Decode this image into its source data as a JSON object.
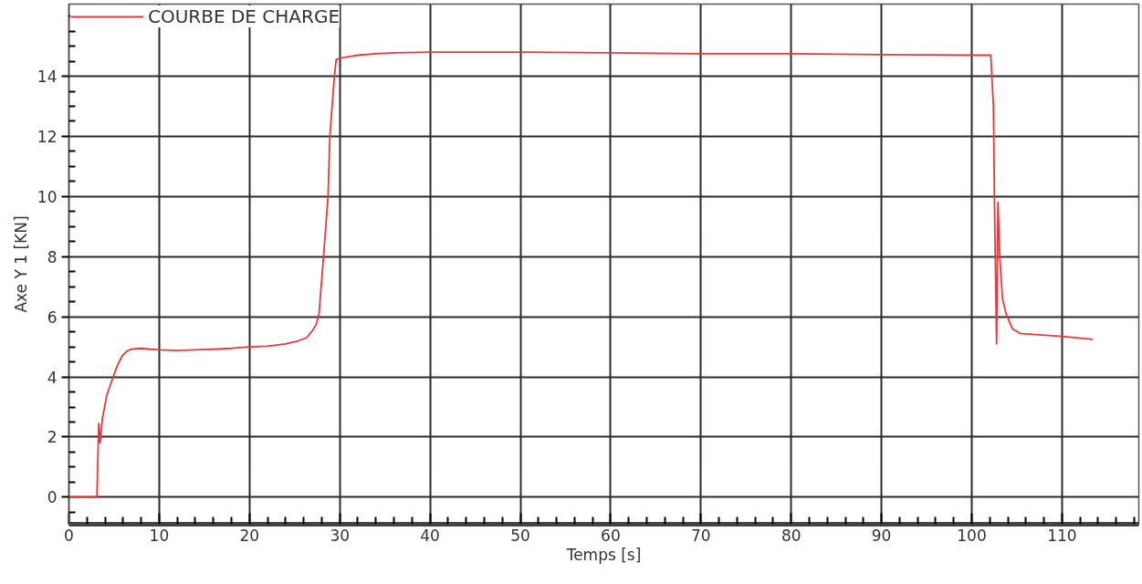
{
  "chart_data": {
    "type": "line",
    "xlabel": "Temps [s]",
    "ylabel": "Axe Y 1 [KN]",
    "x": [
      0,
      3.1,
      3.2,
      3.3,
      3.45,
      3.7,
      4.2,
      4.9,
      5.4,
      5.9,
      6.4,
      6.9,
      8,
      9,
      10,
      12,
      14,
      16,
      18,
      20,
      22,
      24,
      25.4,
      26.3,
      27,
      27.4,
      27.7,
      28.2,
      28.7,
      28.9,
      29.4,
      29.6,
      30,
      31,
      32,
      34,
      36,
      40,
      50,
      60,
      70,
      80,
      90,
      100,
      102.1,
      102.4,
      102.5,
      102.6,
      102.75,
      102.9,
      103.1,
      103.4,
      103.8,
      104.5,
      105.3,
      107.4,
      110,
      113.4
    ],
    "series": [
      {
        "name": "COURBE DE CHARGE",
        "color": "#e8383d",
        "values": [
          0,
          0,
          1.2,
          2.45,
          1.8,
          2.6,
          3.4,
          4.0,
          4.4,
          4.7,
          4.85,
          4.92,
          4.95,
          4.92,
          4.9,
          4.88,
          4.9,
          4.92,
          4.95,
          5.0,
          5.02,
          5.1,
          5.2,
          5.3,
          5.55,
          5.75,
          6.1,
          8.0,
          10.0,
          12.0,
          14.0,
          14.55,
          14.6,
          14.65,
          14.7,
          14.75,
          14.78,
          14.8,
          14.8,
          14.78,
          14.75,
          14.75,
          14.72,
          14.7,
          14.7,
          13.0,
          10.2,
          8.0,
          5.1,
          9.8,
          8.0,
          6.6,
          6.1,
          5.6,
          5.45,
          5.4,
          5.35,
          5.25
        ]
      }
    ],
    "xlim": [
      0,
      118.5
    ],
    "ylim": [
      -0.9,
      16.4
    ],
    "xticks": [
      0,
      {
        "value": 2,
        "label": null
      },
      {
        "value": 4,
        "label": null
      },
      {
        "value": 6,
        "label": null
      },
      {
        "value": 8,
        "label": null
      },
      10,
      {
        "value": 12,
        "label": null
      },
      {
        "value": 14,
        "label": null
      },
      {
        "value": 16,
        "label": null
      },
      {
        "value": 18,
        "label": null
      },
      20,
      {
        "value": 22,
        "label": null
      },
      {
        "value": 24,
        "label": null
      },
      {
        "value": 26,
        "label": null
      },
      {
        "value": 28,
        "label": null
      },
      30,
      {
        "value": 32,
        "label": null
      },
      {
        "value": 34,
        "label": null
      },
      {
        "value": 36,
        "label": null
      },
      {
        "value": 38,
        "label": null
      },
      40,
      {
        "value": 42,
        "label": null
      },
      {
        "value": 44,
        "label": null
      },
      {
        "value": 46,
        "label": null
      },
      {
        "value": 48,
        "label": null
      },
      50,
      {
        "value": 52,
        "label": null
      },
      {
        "value": 54,
        "label": null
      },
      {
        "value": 56,
        "label": null
      },
      {
        "value": 58,
        "label": null
      },
      60,
      {
        "value": 62,
        "label": null
      },
      {
        "value": 64,
        "label": null
      },
      {
        "value": 66,
        "label": null
      },
      {
        "value": 68,
        "label": null
      },
      70,
      {
        "value": 72,
        "label": null
      },
      {
        "value": 74,
        "label": null
      },
      {
        "value": 76,
        "label": null
      },
      {
        "value": 78,
        "label": null
      },
      80,
      {
        "value": 82,
        "label": null
      },
      {
        "value": 84,
        "label": null
      },
      {
        "value": 86,
        "label": null
      },
      {
        "value": 88,
        "label": null
      },
      90,
      {
        "value": 92,
        "label": null
      },
      {
        "value": 94,
        "label": null
      },
      {
        "value": 96,
        "label": null
      },
      {
        "value": 98,
        "label": null
      },
      100,
      {
        "value": 102,
        "label": null
      },
      {
        "value": 104,
        "label": null
      },
      {
        "value": 106,
        "label": null
      },
      {
        "value": 108,
        "label": null
      },
      110,
      {
        "value": 112,
        "label": null
      },
      {
        "value": 114,
        "label": null
      },
      {
        "value": 116,
        "label": null
      },
      {
        "value": 118,
        "label": null
      }
    ],
    "yticks": [
      {
        "value": -0.5,
        "label": null
      },
      0,
      {
        "value": 0.5,
        "label": null
      },
      {
        "value": 1,
        "label": null
      },
      {
        "value": 1.5,
        "label": null
      },
      2,
      {
        "value": 2.5,
        "label": null
      },
      {
        "value": 3,
        "label": null
      },
      {
        "value": 3.5,
        "label": null
      },
      4,
      {
        "value": 4.5,
        "label": null
      },
      {
        "value": 5,
        "label": null
      },
      {
        "value": 5.5,
        "label": null
      },
      6,
      {
        "value": 6.5,
        "label": null
      },
      {
        "value": 7,
        "label": null
      },
      {
        "value": 7.5,
        "label": null
      },
      8,
      {
        "value": 8.5,
        "label": null
      },
      {
        "value": 9,
        "label": null
      },
      {
        "value": 9.5,
        "label": null
      },
      10,
      {
        "value": 10.5,
        "label": null
      },
      {
        "value": 11,
        "label": null
      },
      {
        "value": 11.5,
        "label": null
      },
      12,
      {
        "value": 12.5,
        "label": null
      },
      {
        "value": 13,
        "label": null
      },
      {
        "value": 13.5,
        "label": null
      },
      14,
      {
        "value": 14.5,
        "label": null
      },
      {
        "value": 15,
        "label": null
      },
      {
        "value": 15.5,
        "label": null
      },
      {
        "value": 16,
        "label": null
      }
    ],
    "grid": true,
    "legend": "top left",
    "line_style": "solid"
  }
}
